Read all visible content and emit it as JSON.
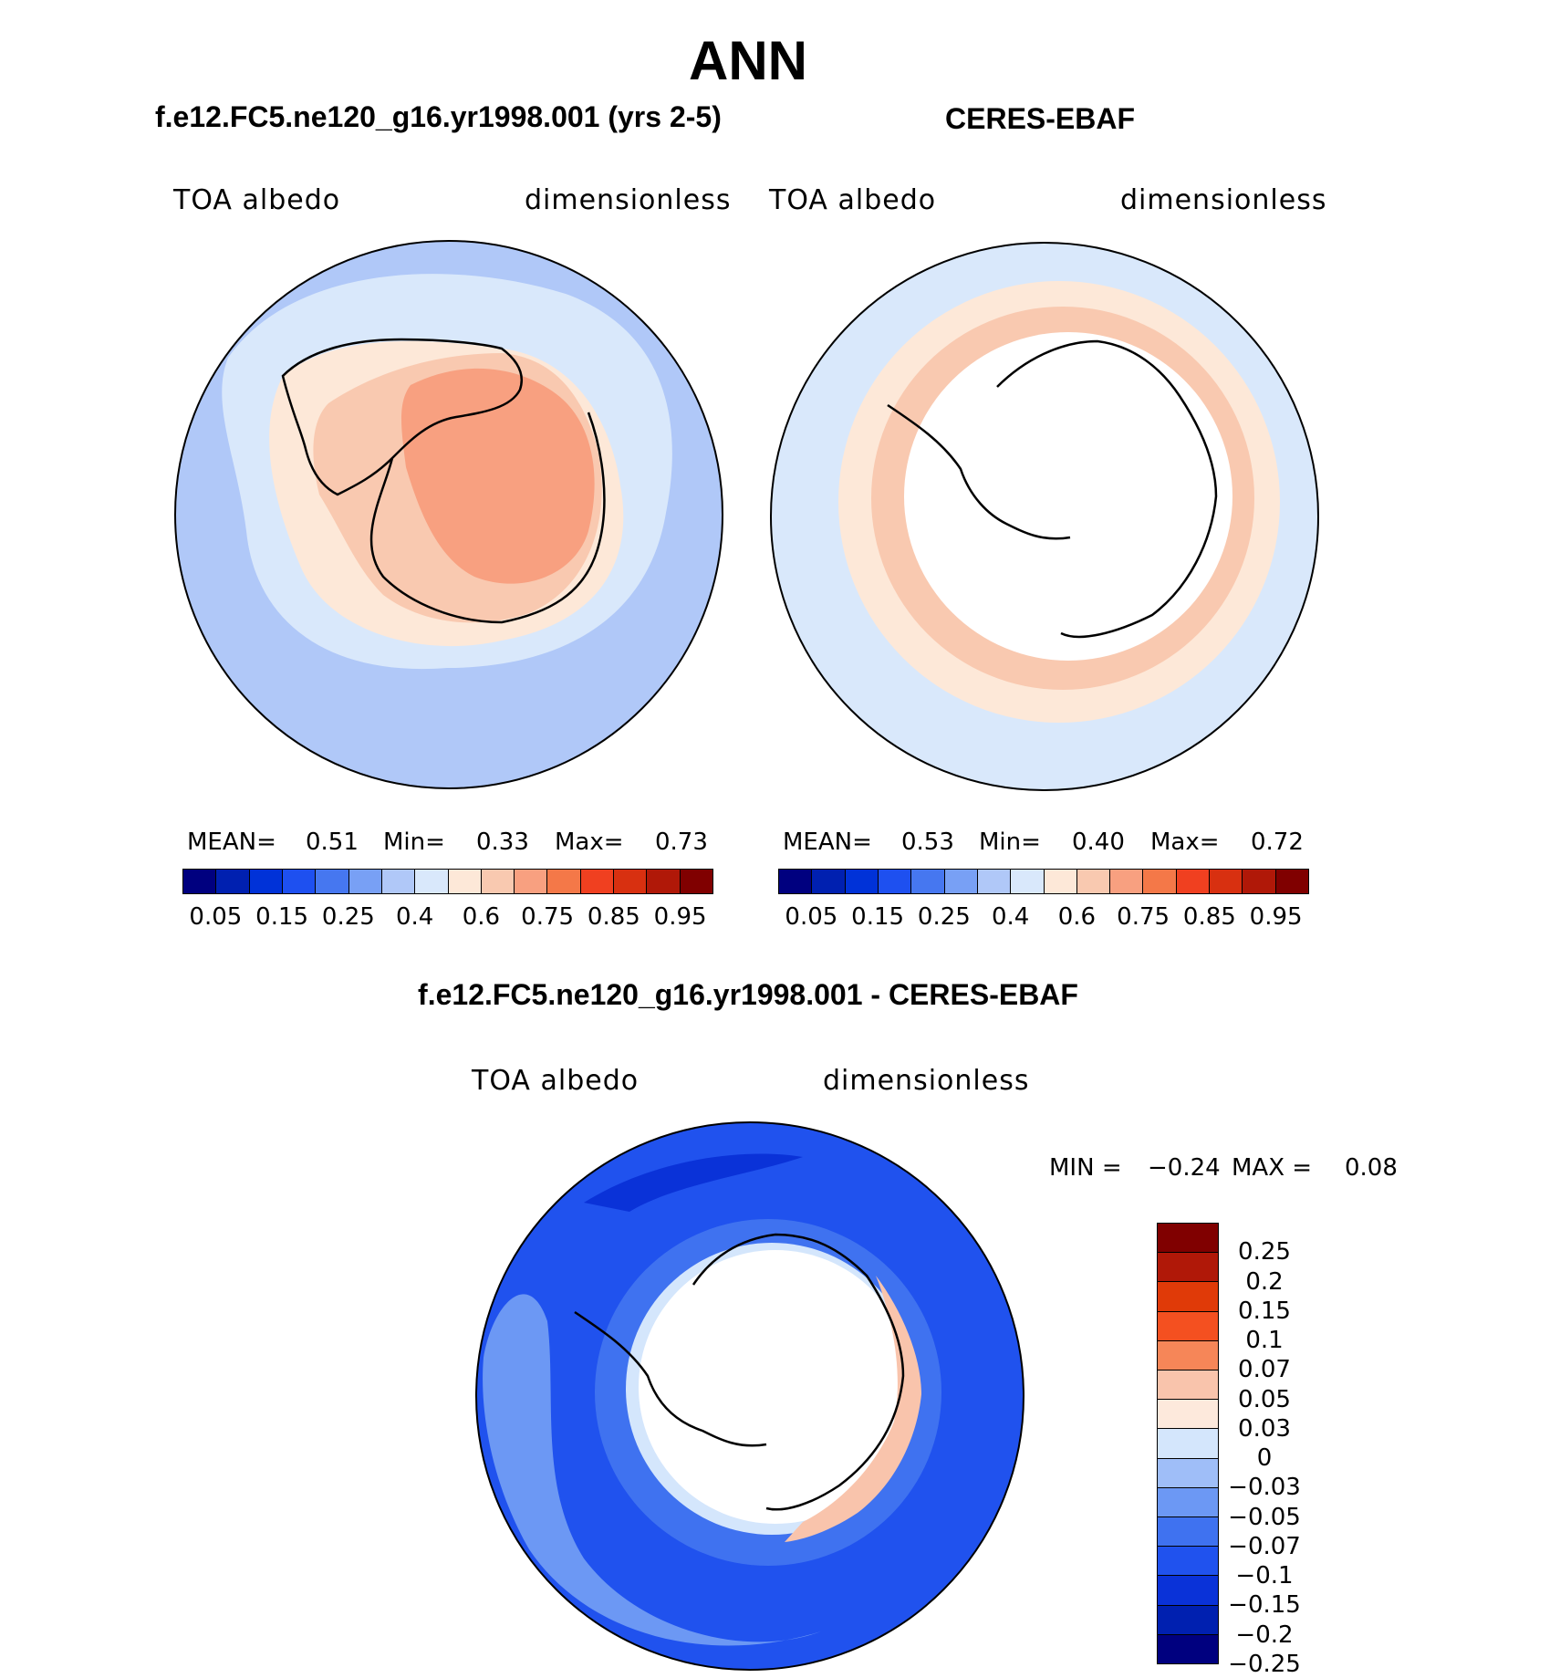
{
  "figure_title": "ANN",
  "colors": {
    "abs_levels": [
      "#00007f",
      "#0020b0",
      "#0032d8",
      "#1e50f0",
      "#4677f0",
      "#78a0f5",
      "#b0c8f8",
      "#d9e8fb",
      "#fde8d8",
      "#f9c9b0",
      "#f8a080",
      "#f47848",
      "#f04020",
      "#d83010",
      "#b01808",
      "#800000"
    ],
    "diff_levels": [
      "#00007f",
      "#0020b0",
      "#0a32d8",
      "#2052ee",
      "#3f72f0",
      "#6c98f4",
      "#9fbef8",
      "#d4e6fc",
      "#fde9dc",
      "#f9c4ac",
      "#f68658",
      "#f45020",
      "#e03a08",
      "#b01808",
      "#800000"
    ]
  },
  "panels": [
    {
      "title": "f.e12.FC5.ne120_g16.yr1998.001 (yrs 2-5)",
      "left_label": "TOA albedo",
      "right_label": "dimensionless",
      "stats": {
        "mean_label": "MEAN=",
        "mean": "0.51",
        "min_label": "Min=",
        "min": "0.33",
        "max_label": "Max=",
        "max": "0.73"
      },
      "colorbar_ticks": [
        "0.05",
        "0.15",
        "0.25",
        "0.4",
        "0.6",
        "0.75",
        "0.85",
        "0.95"
      ]
    },
    {
      "title": "CERES-EBAF",
      "left_label": "TOA albedo",
      "right_label": "dimensionless",
      "stats": {
        "mean_label": "MEAN=",
        "mean": "0.53",
        "min_label": "Min=",
        "min": "0.40",
        "max_label": "Max=",
        "max": "0.72"
      },
      "colorbar_ticks": [
        "0.05",
        "0.15",
        "0.25",
        "0.4",
        "0.6",
        "0.75",
        "0.85",
        "0.95"
      ]
    },
    {
      "title": "f.e12.FC5.ne120_g16.yr1998.001 - CERES-EBAF",
      "left_label": "TOA albedo",
      "right_label": "dimensionless",
      "minmax": {
        "min_label": "MIN =",
        "min": "−0.24",
        "max_label": "MAX =",
        "max": "0.08"
      },
      "colorbar_ticks": [
        "0.25",
        "0.2",
        "0.15",
        "0.1",
        "0.07",
        "0.05",
        "0.03",
        "0",
        "−0.03",
        "−0.05",
        "−0.07",
        "−0.1",
        "−0.15",
        "−0.2",
        "−0.25"
      ]
    }
  ]
}
